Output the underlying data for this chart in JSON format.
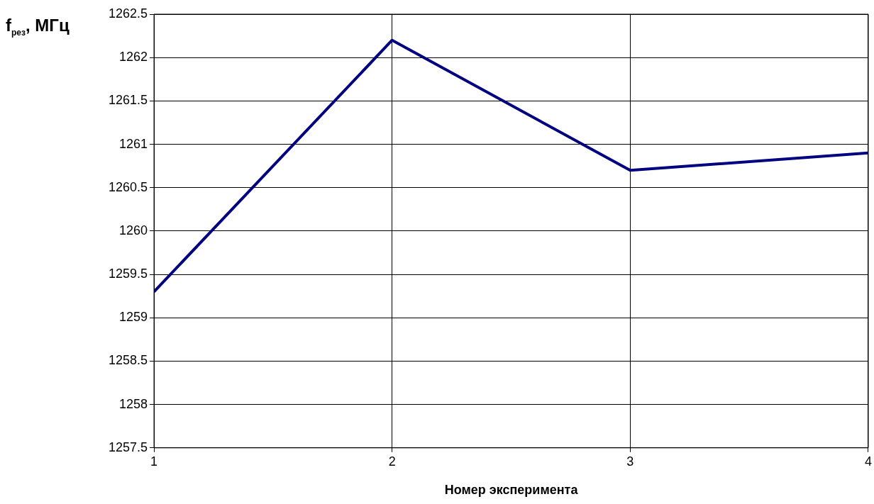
{
  "chart_data": {
    "type": "line",
    "xlabel": "Номер эксперимента",
    "ylabel": "f$_{рез}$, МГц",
    "x": [
      1,
      2,
      3,
      4
    ],
    "series": [
      {
        "color": "#000080",
        "values": [
          1259.3,
          1262.2,
          1260.7,
          1260.9
        ]
      }
    ],
    "xlim": [
      1,
      4
    ],
    "xticks": [
      1,
      2,
      3,
      4
    ],
    "ylim": [
      1257.5,
      1262.5
    ],
    "yticks": [
      1257.5,
      1258,
      1258.5,
      1259,
      1259.5,
      1260,
      1260.5,
      1261,
      1261.5,
      1262,
      1262.5
    ],
    "grid": true,
    "legend": false,
    "marker": "none",
    "line_style": "solid"
  }
}
